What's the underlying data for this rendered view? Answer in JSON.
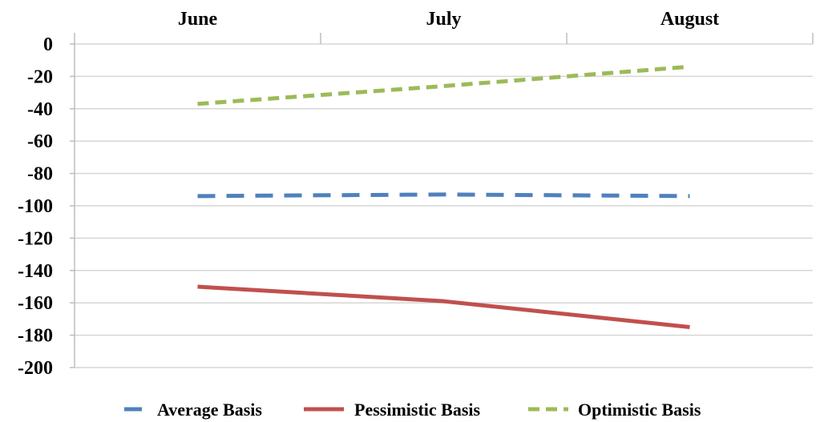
{
  "chart_data": {
    "type": "line",
    "categories": [
      "June",
      "July",
      "August"
    ],
    "xaxis_position": "top",
    "ylim": [
      -200,
      0
    ],
    "yticks": [
      0,
      -20,
      -40,
      -60,
      -80,
      -100,
      -120,
      -140,
      -160,
      -180,
      -200
    ],
    "grid": true,
    "legend_position": "bottom",
    "series": [
      {
        "name": "Average Basis",
        "values": [
          -94,
          -93,
          -94
        ],
        "color": "#4f81bd",
        "dash": "long-dash"
      },
      {
        "name": "Pessimistic Basis",
        "values": [
          -150,
          -159,
          -175
        ],
        "color": "#c0504d",
        "dash": "solid"
      },
      {
        "name": "Optimistic Basis",
        "values": [
          -37,
          -26,
          -14
        ],
        "color": "#9bbb59",
        "dash": "dash"
      }
    ]
  }
}
